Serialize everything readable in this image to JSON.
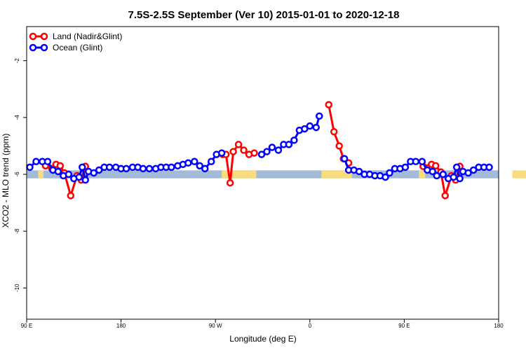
{
  "chart_data": {
    "type": "line",
    "title": "7.5S-2.5S September (Ver 10)   2015-01-01 to 2020-12-18",
    "xlabel": "Longitude (deg E)",
    "ylabel": "XCO2 - MLO trend (ppm)",
    "x_ticks": [
      {
        "x": 90,
        "label": "90 E"
      },
      {
        "x": 180,
        "label": "180"
      },
      {
        "x": 270,
        "label": "90 W"
      },
      {
        "x": 360,
        "label": "0"
      },
      {
        "x": 450,
        "label": "90 E"
      },
      {
        "x": 540,
        "label": "180"
      }
    ],
    "y_ticks": [
      {
        "y": -2,
        "label": "-2"
      },
      {
        "y": -4,
        "label": "-4"
      },
      {
        "y": -6,
        "label": "-6"
      },
      {
        "y": -8,
        "label": "-8"
      },
      {
        "y": -10,
        "label": "-10"
      }
    ],
    "xlim": [
      90,
      540
    ],
    "ylim": [
      -11.1,
      -0.8
    ],
    "grid": false,
    "legend_position": "top-left",
    "surface_band": {
      "y_range": [
        -6.14,
        -5.86
      ],
      "ocean_color": "#a3bbd9",
      "land_color": "#f8dc7f",
      "land_segments": [
        [
          101,
          106
        ],
        [
          276,
          309
        ],
        [
          371,
          400
        ],
        [
          464,
          470
        ],
        [
          553,
          585
        ]
      ]
    },
    "series": [
      {
        "name": "Land (Nadir&Glint)",
        "color": "#ff0000",
        "segments": [
          [
            [
              108,
              -5.7
            ],
            [
              114,
              -5.8
            ],
            [
              118,
              -5.65
            ],
            [
              122,
              -5.7
            ],
            [
              126,
              -5.95
            ],
            [
              132,
              -6.75
            ],
            [
              138,
              -6.05
            ],
            [
              142,
              -6.2
            ],
            [
              146,
              -5.72
            ]
          ],
          [
            [
              277,
              -5.3
            ],
            [
              280,
              -5.3
            ],
            [
              284,
              -6.3
            ],
            [
              287,
              -5.2
            ],
            [
              292,
              -4.95
            ],
            [
              297,
              -5.15
            ],
            [
              302,
              -5.3
            ],
            [
              307,
              -5.25
            ]
          ],
          [
            [
              378,
              -3.55
            ],
            [
              383,
              -4.5
            ],
            [
              388,
              -5.0
            ],
            [
              392,
              -5.45
            ],
            [
              397,
              -5.6
            ]
          ],
          [
            [
              468,
              -5.72
            ],
            [
              476,
              -5.65
            ],
            [
              480,
              -5.7
            ],
            [
              485,
              -5.92
            ],
            [
              489,
              -6.75
            ],
            [
              495,
              -6.05
            ],
            [
              499,
              -6.2
            ],
            [
              503,
              -5.72
            ]
          ]
        ]
      },
      {
        "name": "Ocean (Glint)",
        "color": "#0000ff",
        "segments": [
          [
            [
              93,
              -5.75
            ],
            [
              99,
              -5.55
            ],
            [
              105,
              -5.55
            ],
            [
              110,
              -5.55
            ],
            [
              115,
              -5.85
            ],
            [
              120,
              -5.9
            ],
            [
              125,
              -6.05
            ],
            [
              130,
              -6.0
            ],
            [
              135,
              -6.15
            ],
            [
              140,
              -6.1
            ],
            [
              143,
              -5.75
            ],
            [
              146,
              -6.2
            ],
            [
              149,
              -5.9
            ],
            [
              154,
              -5.95
            ],
            [
              159,
              -5.85
            ],
            [
              164,
              -5.75
            ],
            [
              169,
              -5.75
            ],
            [
              175,
              -5.75
            ],
            [
              180,
              -5.8
            ],
            [
              185,
              -5.8
            ],
            [
              191,
              -5.75
            ],
            [
              196,
              -5.75
            ],
            [
              201,
              -5.8
            ],
            [
              207,
              -5.8
            ],
            [
              213,
              -5.8
            ],
            [
              218,
              -5.75
            ],
            [
              223,
              -5.75
            ],
            [
              228,
              -5.75
            ],
            [
              234,
              -5.7
            ],
            [
              239,
              -5.65
            ],
            [
              244,
              -5.6
            ],
            [
              250,
              -5.55
            ],
            [
              255,
              -5.7
            ],
            [
              260,
              -5.8
            ],
            [
              266,
              -5.55
            ],
            [
              271,
              -5.3
            ],
            [
              276,
              -5.25
            ]
          ],
          [
            [
              314,
              -5.3
            ],
            [
              319,
              -5.2
            ],
            [
              324,
              -5.05
            ],
            [
              330,
              -5.15
            ],
            [
              335,
              -4.95
            ],
            [
              340,
              -4.95
            ],
            [
              345,
              -4.8
            ],
            [
              350,
              -4.45
            ],
            [
              355,
              -4.4
            ],
            [
              360,
              -4.3
            ],
            [
              366,
              -4.35
            ],
            [
              369,
              -3.95
            ]
          ],
          [
            [
              393,
              -5.45
            ],
            [
              397,
              -5.85
            ],
            [
              402,
              -5.85
            ],
            [
              407,
              -5.9
            ],
            [
              412,
              -6.0
            ],
            [
              417,
              -6.0
            ],
            [
              422,
              -6.05
            ],
            [
              427,
              -6.05
            ],
            [
              432,
              -6.1
            ],
            [
              436,
              -5.95
            ],
            [
              441,
              -5.8
            ],
            [
              446,
              -5.8
            ],
            [
              451,
              -5.75
            ],
            [
              456,
              -5.55
            ],
            [
              461,
              -5.55
            ],
            [
              467,
              -5.55
            ],
            [
              472,
              -5.85
            ],
            [
              477,
              -5.9
            ],
            [
              481,
              -6.05
            ],
            [
              487,
              -6.0
            ],
            [
              492,
              -6.15
            ],
            [
              497,
              -6.1
            ],
            [
              500,
              -5.75
            ],
            [
              503,
              -6.15
            ],
            [
              506,
              -5.9
            ],
            [
              511,
              -5.95
            ],
            [
              516,
              -5.85
            ],
            [
              521,
              -5.75
            ],
            [
              526,
              -5.75
            ],
            [
              531,
              -5.75
            ]
          ]
        ]
      }
    ]
  }
}
